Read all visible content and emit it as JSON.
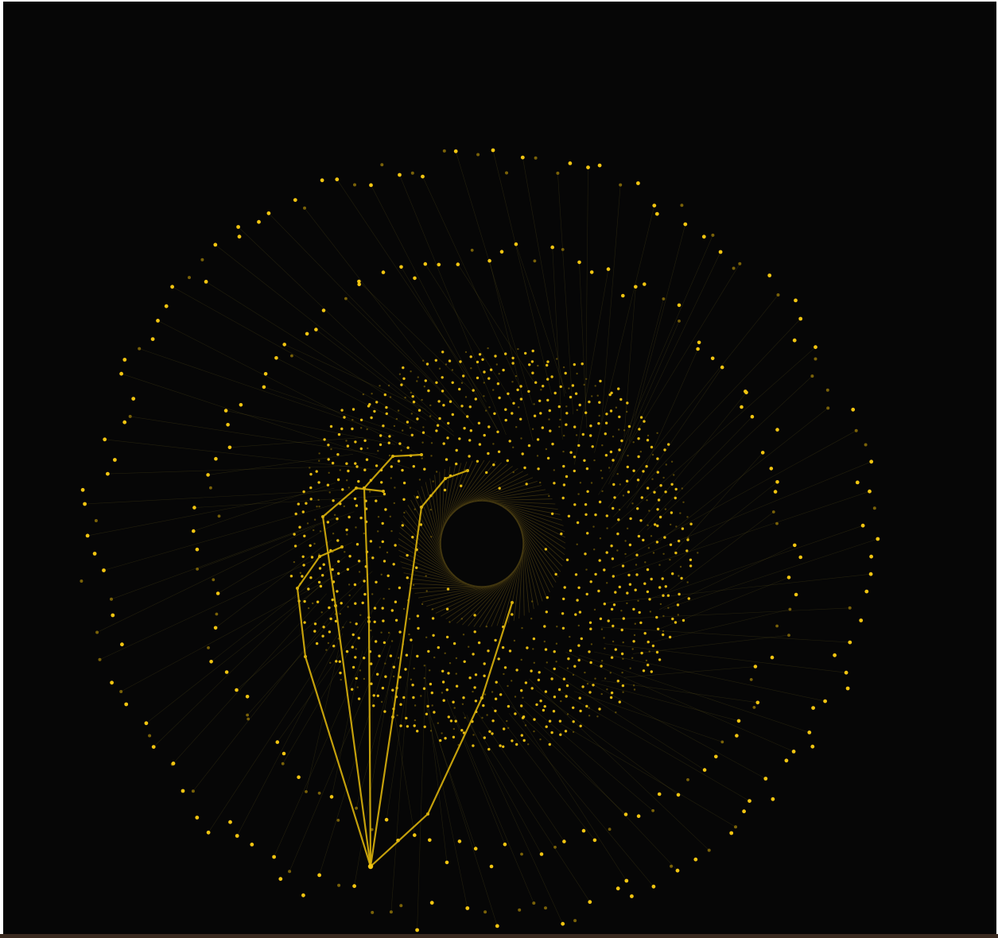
{
  "visualization": {
    "kind": "radial-node-graph",
    "background_color": "#060606",
    "node_color": "#f2c511",
    "dim_node_color": "#7a6208",
    "spoke_color": "#8a7a2a",
    "highlight_path_color": "#d9b10c",
    "inner_ring_color": "#5a4a14",
    "frame_border_color": "#3a2a20",
    "outer_ring_node_count": 150,
    "middle_ring_node_count": 120,
    "core_node_count": 1000,
    "highlighted_path_count": 4
  }
}
